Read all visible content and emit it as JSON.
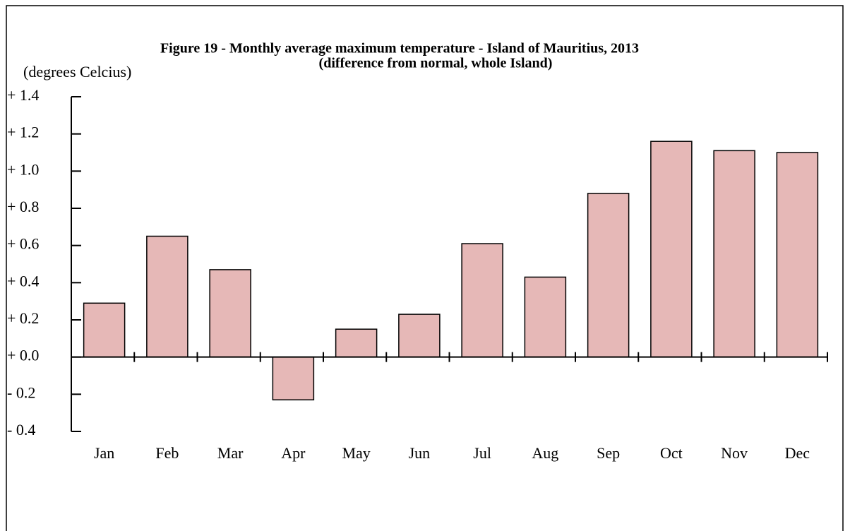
{
  "chart_data": {
    "type": "bar",
    "title": "Figure 19 - Monthly average maximum temperature - Island of Mauritius, 2013",
    "subtitle": "(difference from normal, whole Island)",
    "y_label": "(degrees Celcius)",
    "categories": [
      "Jan",
      "Feb",
      "Mar",
      "Apr",
      "May",
      "Jun",
      "Jul",
      "Aug",
      "Sep",
      "Oct",
      "Nov",
      "Dec"
    ],
    "values": [
      0.29,
      0.65,
      0.47,
      -0.23,
      0.15,
      0.23,
      0.61,
      0.43,
      0.88,
      1.16,
      1.11,
      1.1
    ],
    "color": "#e6b8b7",
    "ylim": [
      -0.4,
      1.4
    ],
    "yticks": [
      {
        "value": 1.4,
        "label": "+ 1.4"
      },
      {
        "value": 1.2,
        "label": "+ 1.2"
      },
      {
        "value": 1.0,
        "label": "+ 1.0"
      },
      {
        "value": 0.8,
        "label": "+ 0.8"
      },
      {
        "value": 0.6,
        "label": "+ 0.6"
      },
      {
        "value": 0.4,
        "label": "+ 0.4"
      },
      {
        "value": 0.2,
        "label": "+ 0.2"
      },
      {
        "value": 0.0,
        "label": "+ 0.0"
      },
      {
        "value": -0.2,
        "label": "- 0.2"
      },
      {
        "value": -0.4,
        "label": "- 0.4"
      }
    ],
    "grid": false
  }
}
